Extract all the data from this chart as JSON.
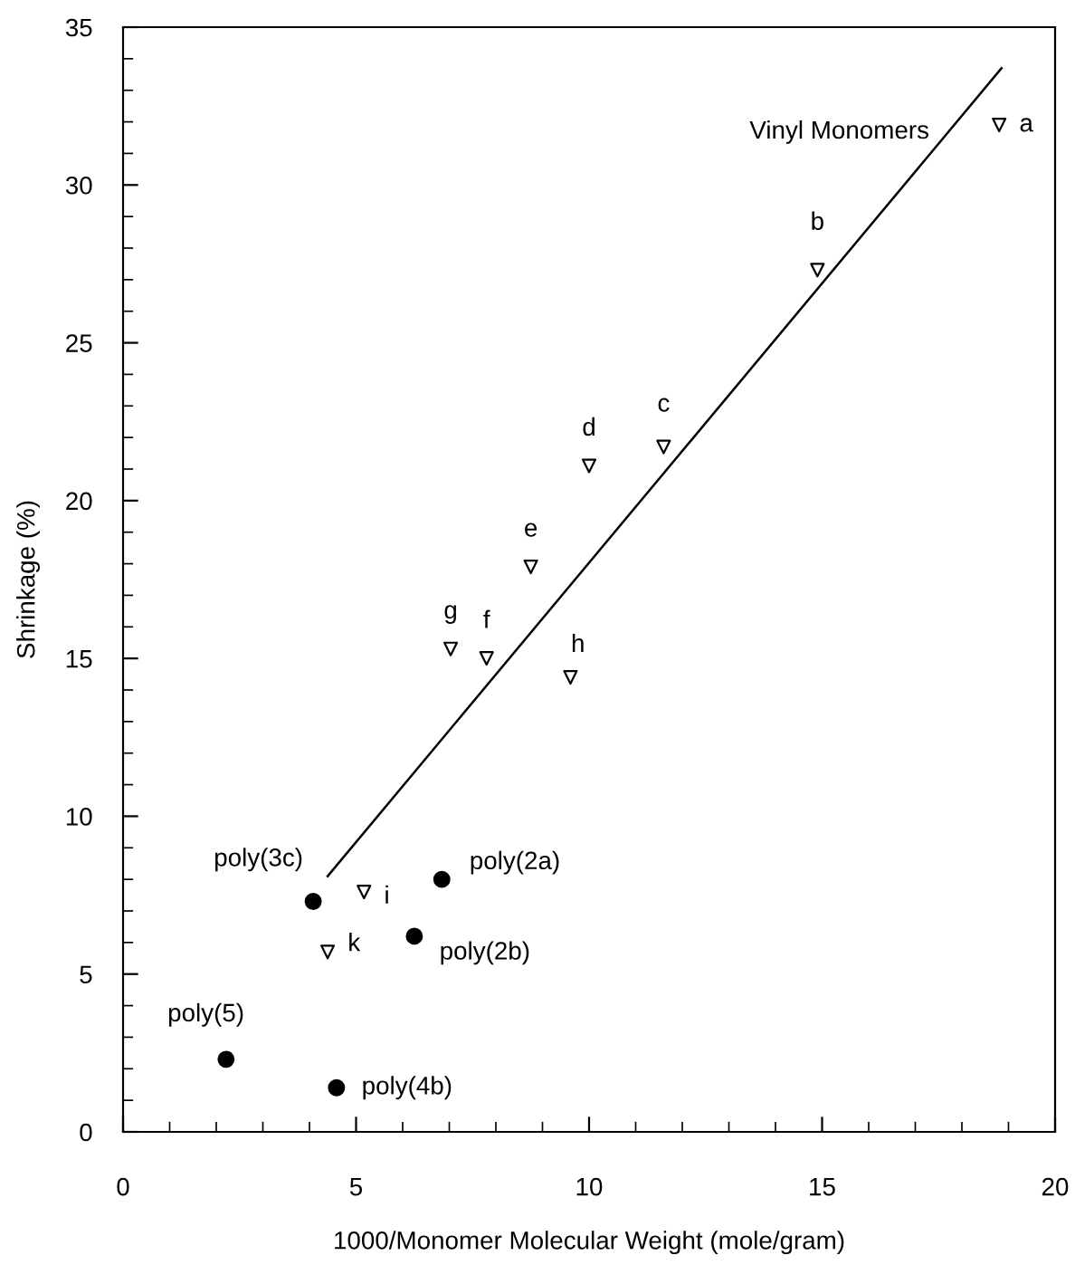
{
  "chart_data": {
    "type": "scatter",
    "xlabel": "1000/Monomer Molecular Weight (mole/gram)",
    "ylabel": "Shrinkage (%)",
    "xlim": [
      0,
      20
    ],
    "ylim": [
      0,
      35
    ],
    "xticks": [
      0,
      5,
      10,
      15,
      20
    ],
    "yticks": [
      0,
      5,
      10,
      15,
      20,
      25,
      30,
      35
    ],
    "grid": false,
    "legend": false,
    "series": [
      {
        "marker": "triangle",
        "color": "#000000",
        "x": [
          18.8,
          14.9,
          11.6,
          10.0,
          8.75,
          7.8,
          7.03,
          9.6,
          5.17,
          4.39
        ],
        "values": [
          31.9,
          27.3,
          21.7,
          21.1,
          17.9,
          15.0,
          15.3,
          14.4,
          7.6,
          5.7
        ]
      },
      {
        "marker": "circle",
        "color": "#000000",
        "x": [
          4.08,
          6.84,
          6.25,
          2.21,
          4.58
        ],
        "values": [
          7.3,
          8.0,
          6.2,
          2.3,
          1.4
        ]
      },
      {
        "type": "line",
        "marker": "none",
        "color": "#000000",
        "x": [
          4.39,
          18.85
        ],
        "values": [
          8.1,
          33.7
        ]
      }
    ],
    "annotations": [
      {
        "text": "a",
        "x": 18.8,
        "y": 31.9
      },
      {
        "text": "b",
        "x": 14.9,
        "y": 27.3
      },
      {
        "text": "c",
        "x": 11.6,
        "y": 21.7
      },
      {
        "text": "d",
        "x": 10.0,
        "y": 21.1
      },
      {
        "text": "e",
        "x": 8.75,
        "y": 17.9
      },
      {
        "text": "f",
        "x": 7.8,
        "y": 15.0
      },
      {
        "text": "g",
        "x": 7.03,
        "y": 15.3
      },
      {
        "text": "h",
        "x": 9.6,
        "y": 14.4
      },
      {
        "text": "i",
        "x": 5.17,
        "y": 7.6
      },
      {
        "text": "k",
        "x": 4.39,
        "y": 5.7
      },
      {
        "text": "poly(3c)",
        "x": 4.08,
        "y": 7.3
      },
      {
        "text": "poly(2a)",
        "x": 6.84,
        "y": 8.0
      },
      {
        "text": "poly(2b)",
        "x": 6.25,
        "y": 6.2
      },
      {
        "text": "poly(5)",
        "x": 2.21,
        "y": 2.3
      },
      {
        "text": "poly(4b)",
        "x": 4.58,
        "y": 1.4
      },
      "Vinyl Monomers"
    ]
  }
}
